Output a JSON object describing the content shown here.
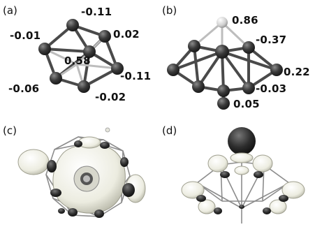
{
  "panels": {
    "a": {
      "label": "(a)",
      "charges": [
        "-0.11",
        "0.02",
        "-0.01",
        "0.58",
        "-0.11",
        "-0.06",
        "-0.02"
      ]
    },
    "b": {
      "label": "(b)",
      "charges": [
        "0.86",
        "-0.37",
        "0.22",
        "-0.03",
        "0.05"
      ]
    },
    "c": {
      "label": "(c)"
    },
    "d": {
      "label": "(d)"
    }
  },
  "colors": {
    "atom": "#3a3a3a",
    "bond": "#555555",
    "light_atom": "#d8d8d8",
    "isosurface_light": "#f0f0e6",
    "isosurface_dark": "#2e2e2e"
  }
}
